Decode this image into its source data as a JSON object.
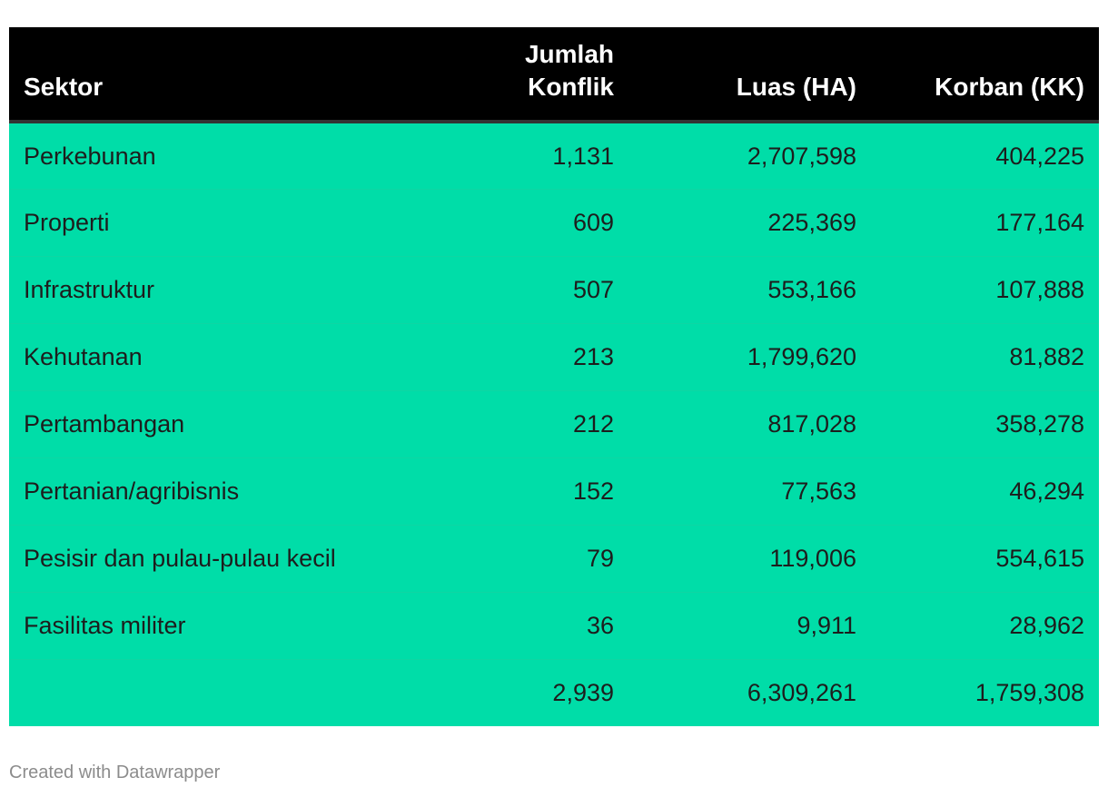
{
  "chart_data": {
    "type": "table",
    "columns": [
      "Sektor",
      "Jumlah Konflik",
      "Luas (HA)",
      "Korban (KK)"
    ],
    "rows": [
      [
        "Perkebunan",
        "1,131",
        "2,707,598",
        "404,225"
      ],
      [
        "Properti",
        "609",
        "225,369",
        "177,164"
      ],
      [
        "Infrastruktur",
        "507",
        "553,166",
        "107,888"
      ],
      [
        "Kehutanan",
        "213",
        "1,799,620",
        "81,882"
      ],
      [
        "Pertambangan",
        "212",
        "817,028",
        "358,278"
      ],
      [
        "Pertanian/agribisnis",
        "152",
        "77,563",
        "46,294"
      ],
      [
        "Pesisir dan pulau-pulau kecil",
        "79",
        "119,006",
        "554,615"
      ],
      [
        "Fasilitas militer",
        "36",
        "9,911",
        "28,962"
      ],
      [
        "",
        "2,939",
        "6,309,261",
        "1,759,308"
      ]
    ],
    "colors": {
      "header_bg": "#000000",
      "header_text": "#ffffff",
      "row_bg": "#00dda8"
    }
  },
  "footer": {
    "credit": "Created with Datawrapper"
  }
}
